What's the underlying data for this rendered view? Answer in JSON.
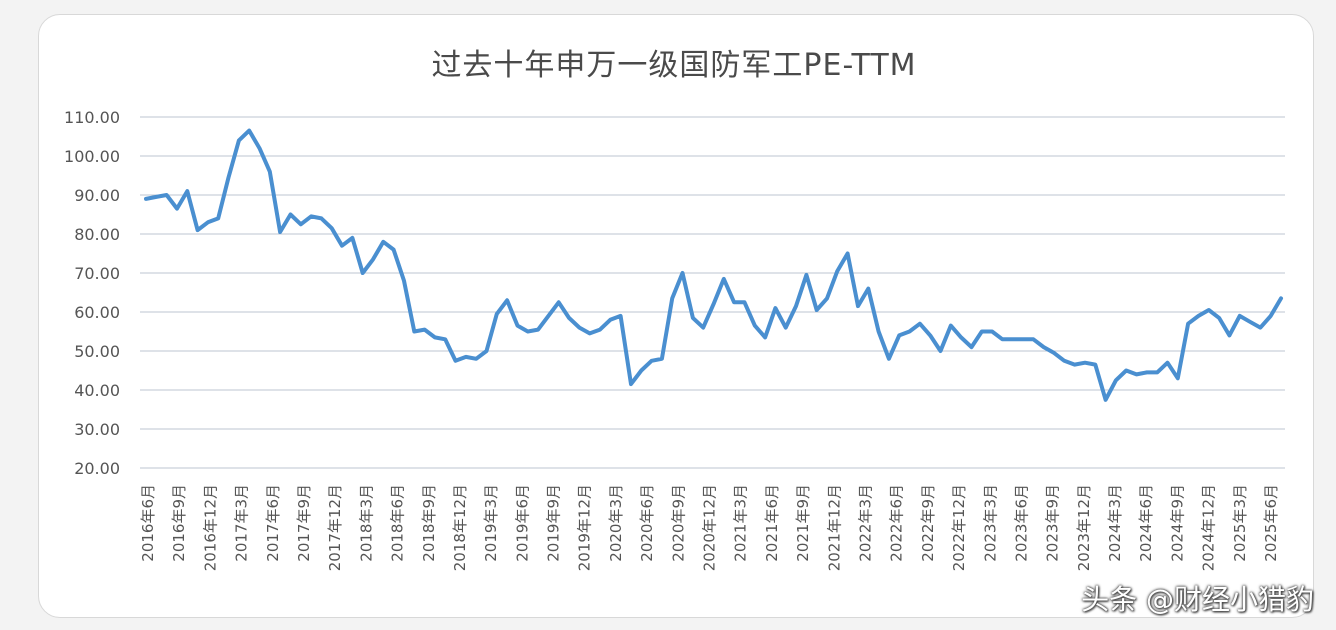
{
  "chart_data": {
    "type": "line",
    "title": "过去十年申万一级国防军工PE-TTM",
    "xlabel": "",
    "ylabel": "",
    "ylim": [
      20,
      110
    ],
    "yticks": [
      "20.00",
      "30.00",
      "40.00",
      "50.00",
      "60.00",
      "70.00",
      "80.00",
      "90.00",
      "100.00",
      "110.00"
    ],
    "xtick_labels": [
      "2016年6月",
      "2016年9月",
      "2016年12月",
      "2017年3月",
      "2017年6月",
      "2017年9月",
      "2017年12月",
      "2018年3月",
      "2018年6月",
      "2018年9月",
      "2018年12月",
      "2019年3月",
      "2019年6月",
      "2019年9月",
      "2019年12月",
      "2020年3月",
      "2020年6月",
      "2020年9月",
      "2020年12月",
      "2021年3月",
      "2021年6月",
      "2021年9月",
      "2021年12月",
      "2022年3月",
      "2022年6月",
      "2022年9月",
      "2022年12月",
      "2023年3月",
      "2023年6月",
      "2023年9月",
      "2023年12月",
      "2024年3月",
      "2024年6月",
      "2024年9月",
      "2024年12月",
      "2025年3月",
      "2025年6月"
    ],
    "grid": true,
    "line_color": "#4a8fd0",
    "grid_color": "#bcc5d0",
    "series": [
      {
        "values": [
          89.0,
          89.5,
          90.0,
          86.5,
          91.0,
          81.0,
          83.0,
          84.0,
          94.5,
          104.0,
          106.5,
          102.0,
          96.0,
          80.5,
          85.0,
          82.5,
          84.5,
          84.0,
          81.5,
          77.0,
          79.0,
          70.0,
          73.5,
          78.0,
          76.0,
          68.0,
          55.0,
          55.5,
          53.5,
          53.0,
          47.5,
          48.5,
          48.0,
          50.0,
          59.5,
          63.0,
          56.5,
          55.0,
          55.5,
          59.0,
          62.5,
          58.5,
          56.0,
          54.5,
          55.5,
          58.0,
          59.0,
          41.5,
          45.0,
          47.5,
          48.0,
          63.5,
          70.0,
          58.5,
          56.0,
          62.0,
          68.5,
          62.5,
          62.5,
          56.5,
          53.5,
          61.0,
          56.0,
          61.5,
          69.5,
          60.5,
          63.5,
          70.5,
          75.0,
          61.5,
          66.0,
          55.0,
          48.0,
          54.0,
          55.0,
          57.0,
          54.0,
          50.0,
          56.5,
          53.5,
          51.0,
          55.0,
          55.0,
          53.0,
          53.0,
          53.0,
          53.0,
          51.0,
          49.5,
          47.5,
          46.5,
          47.0,
          46.5,
          37.5,
          42.5,
          45.0,
          44.0,
          44.5,
          44.5,
          47.0,
          43.0,
          57.0,
          59.0,
          60.5,
          58.5,
          54.0,
          59.0,
          57.5,
          56.0,
          59.0,
          63.5
        ]
      }
    ]
  },
  "watermark": "头条 @财经小猎豹"
}
